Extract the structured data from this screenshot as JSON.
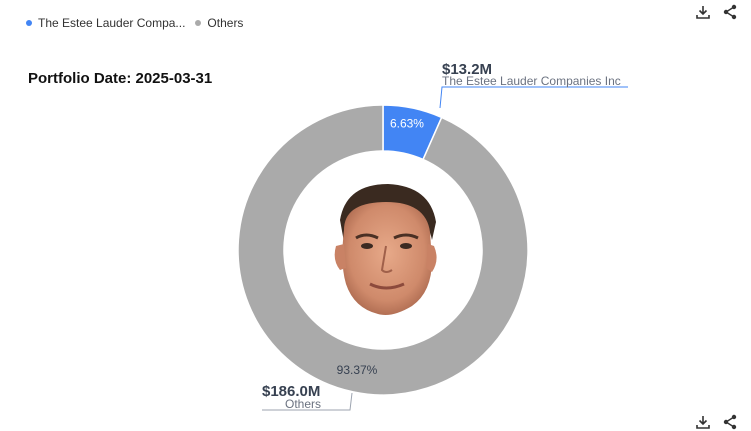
{
  "legend": [
    {
      "label": "The Estee Lauder Compa...",
      "color": "#4285f4"
    },
    {
      "label": "Others",
      "color": "#aaaaaa"
    }
  ],
  "portfolio_date": "Portfolio Date: 2025-03-31",
  "icons": {
    "download": "download-icon",
    "share": "share-icon",
    "avatar": "investor-portrait"
  },
  "chart_data": {
    "type": "pie",
    "variant": "donut",
    "slices": [
      {
        "name": "The Estee Lauder Companies Inc",
        "value_label": "$13.2M",
        "value": 13.2,
        "percent": 6.63,
        "percent_label": "6.63%",
        "color": "#4285f4"
      },
      {
        "name": "Others",
        "value_label": "$186.0M",
        "value": 186.0,
        "percent": 93.37,
        "percent_label": "93.37%",
        "color": "#aaaaaa"
      }
    ]
  }
}
